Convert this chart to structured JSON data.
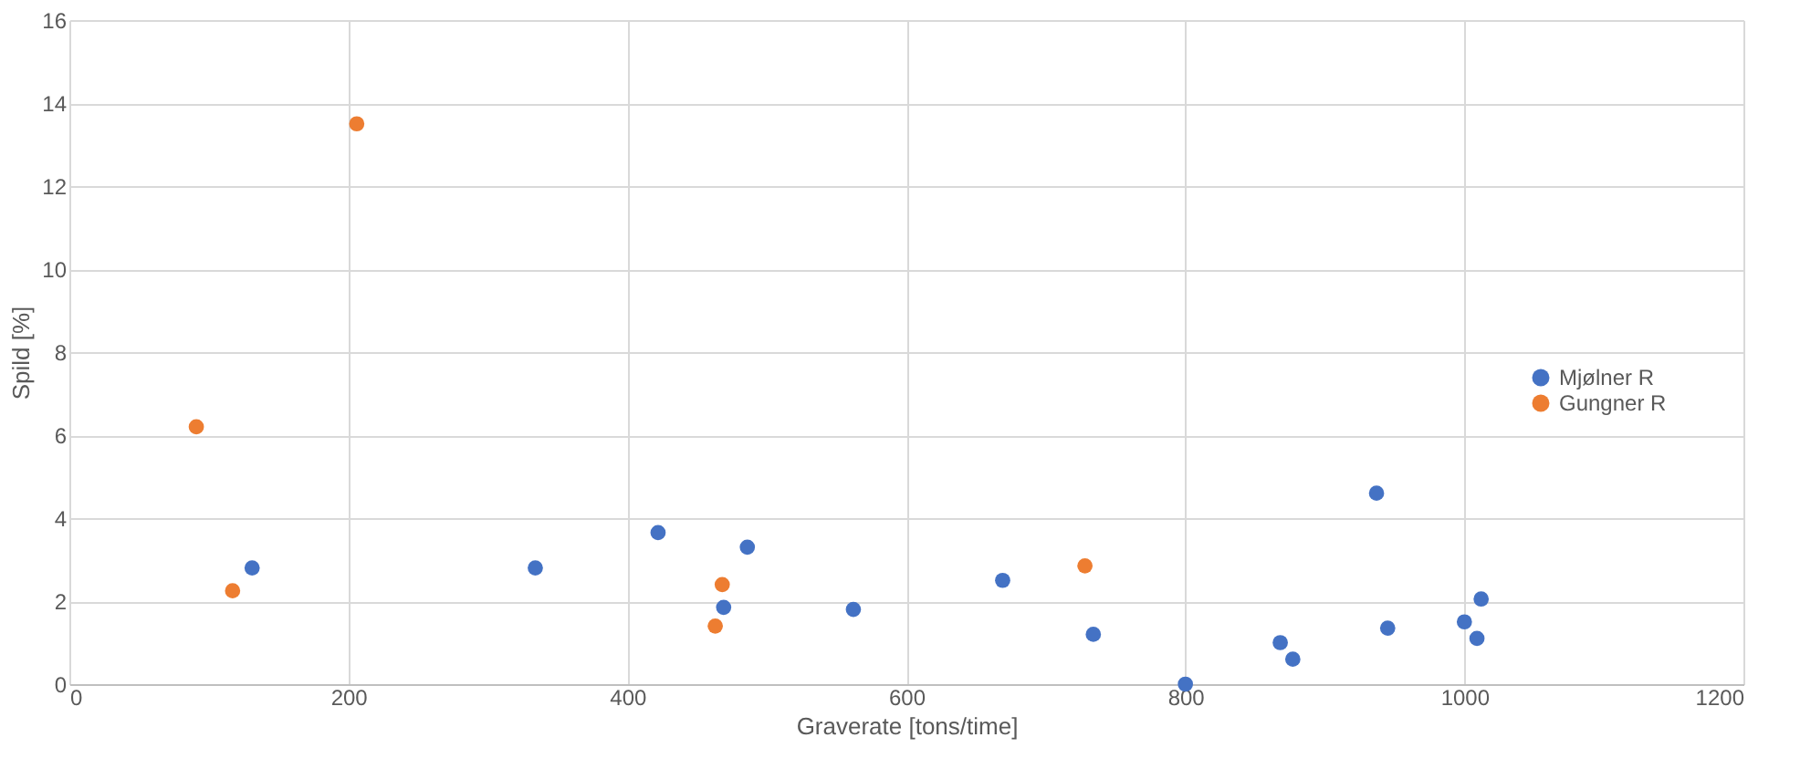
{
  "chart_data": {
    "type": "scatter",
    "xlabel": "Graverate [tons/time]",
    "ylabel": "Spild [%]",
    "series": [
      {
        "name": "Mjølner R",
        "color": "#4472c4",
        "x": [
          131,
          334,
          422,
          486,
          469,
          562,
          669,
          734,
          800,
          868,
          877,
          937,
          945,
          1000,
          1012,
          1009
        ],
        "values": [
          2.8,
          2.8,
          3.65,
          3.3,
          1.85,
          1.8,
          2.5,
          1.2,
          0,
          1.0,
          0.6,
          4.6,
          1.35,
          1.5,
          2.05,
          1.1
        ]
      },
      {
        "name": "Gungner R",
        "color": "#ed7d31",
        "x": [
          91,
          117,
          206,
          468,
          463,
          728
        ],
        "values": [
          6.2,
          2.25,
          13.5,
          2.4,
          1.4,
          2.85
        ]
      }
    ],
    "xlim": [
      0,
      1200
    ],
    "xticks": [
      0,
      200,
      400,
      600,
      800,
      1000,
      1200
    ],
    "ylim": [
      0,
      16
    ],
    "yticks": [
      0,
      2,
      4,
      6,
      8,
      10,
      12,
      14,
      16
    ],
    "grid": true,
    "legend": "right",
    "marker": "circle"
  }
}
